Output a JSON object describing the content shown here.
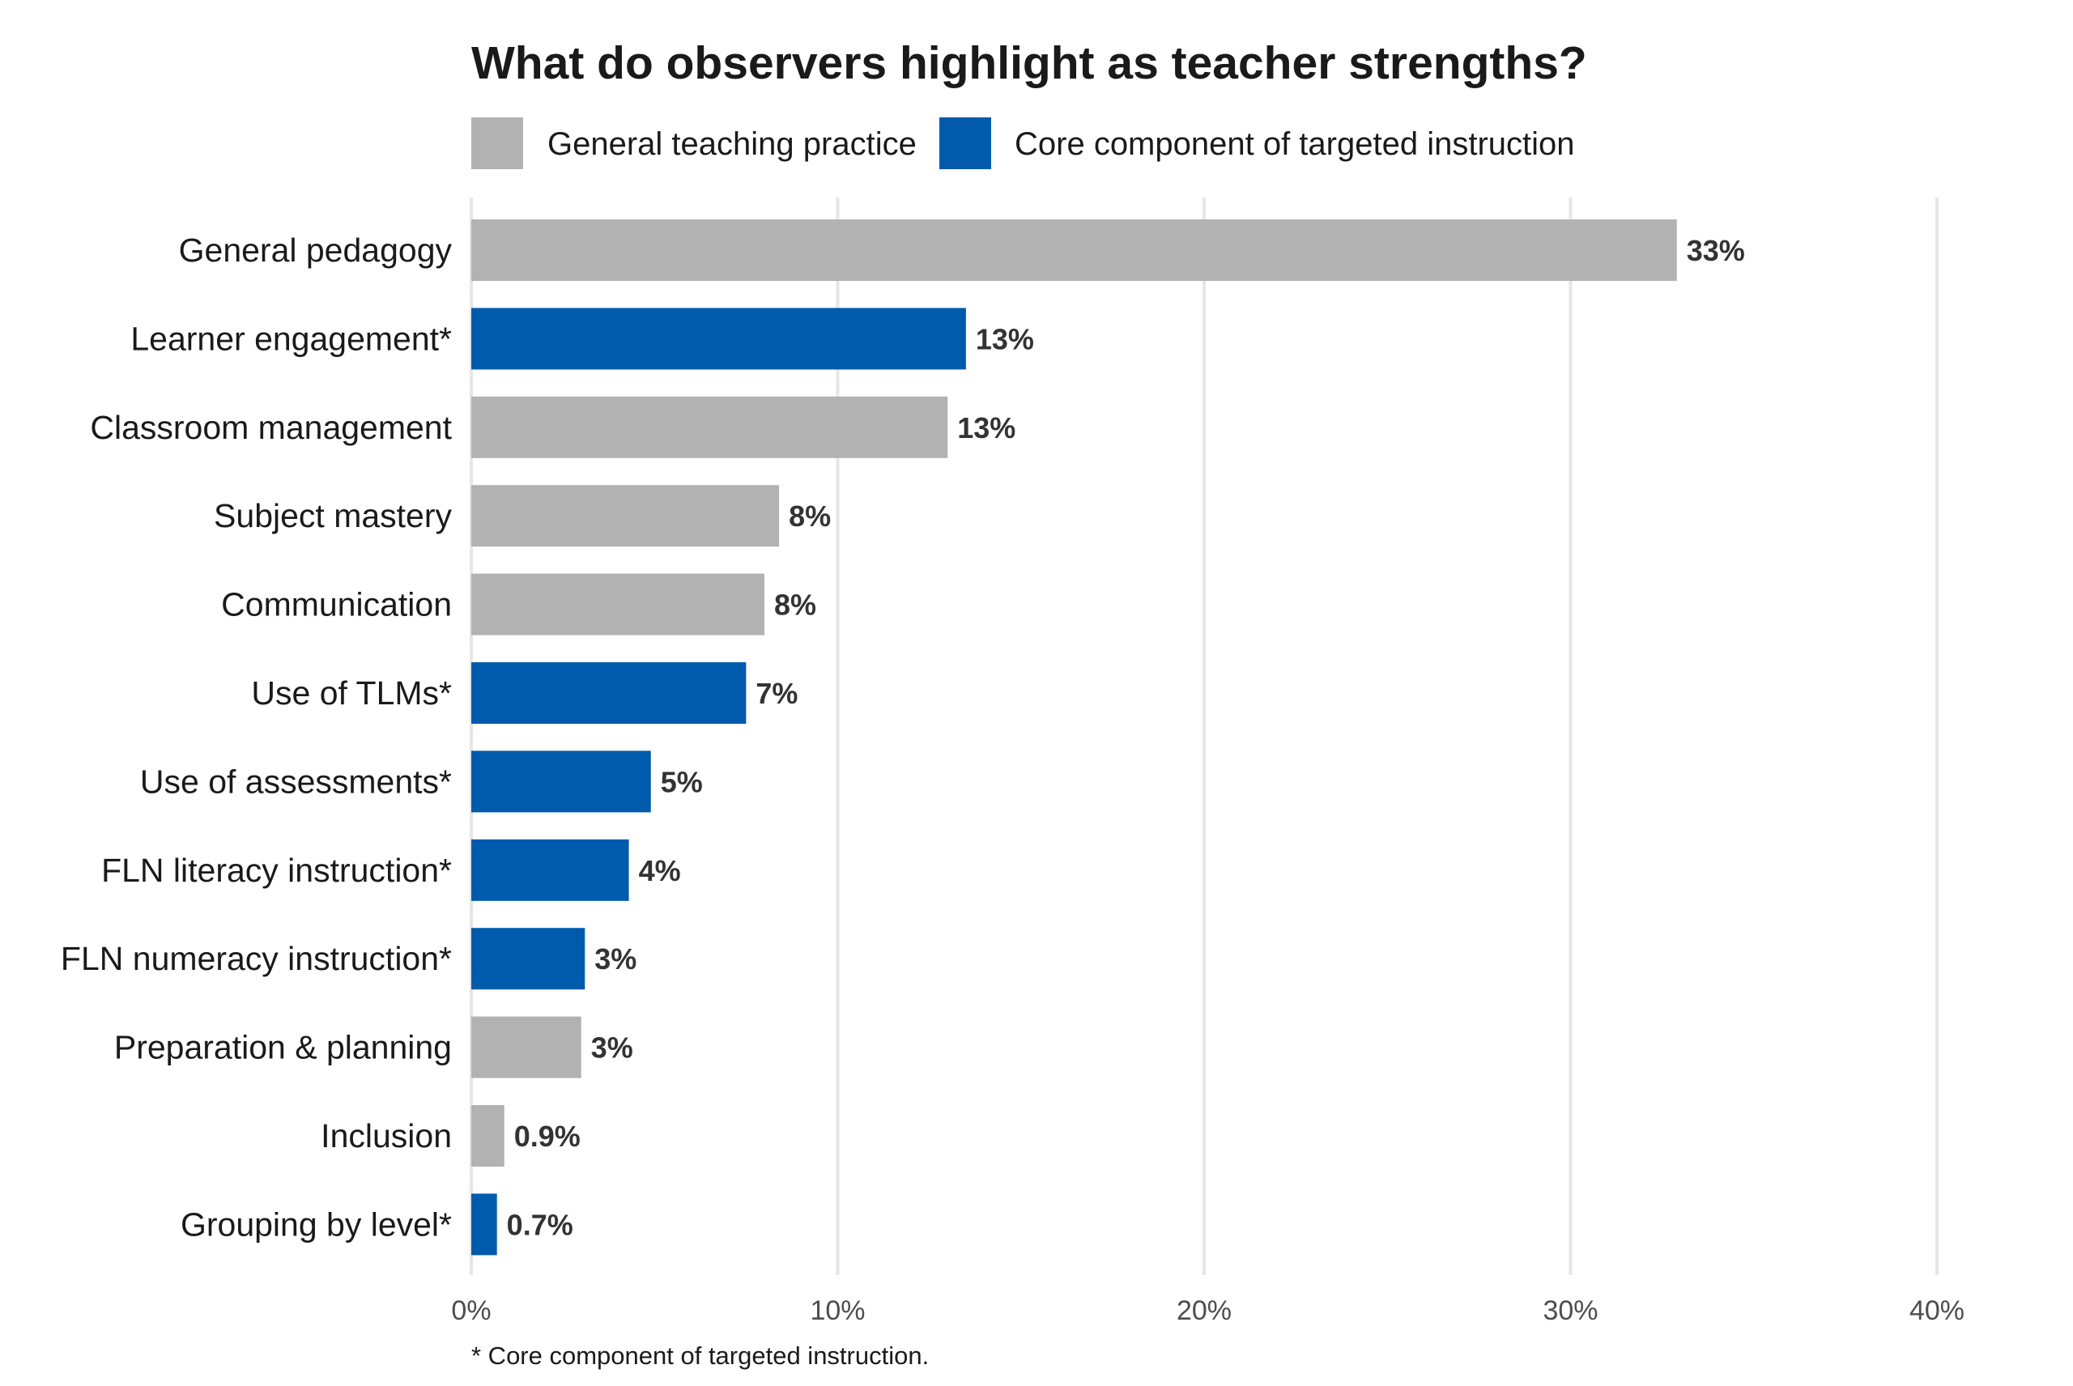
{
  "chart_data": {
    "type": "bar",
    "orientation": "horizontal",
    "title": "What do observers highlight as teacher strengths?",
    "xlabel": "",
    "ylabel": "",
    "xlim": [
      0,
      40
    ],
    "ticks": [
      0,
      10,
      20,
      30,
      40
    ],
    "tick_labels": [
      "0%",
      "10%",
      "20%",
      "30%",
      "40%"
    ],
    "grid": "vertical",
    "legend": {
      "placement": "top-left",
      "entries": [
        {
          "key": "general",
          "label": "General teaching practice",
          "color": "#b2b2b2"
        },
        {
          "key": "core",
          "label": "Core component of targeted instruction",
          "color": "#005bac"
        }
      ]
    },
    "categories": [
      "General pedagogy",
      "Learner engagement*",
      "Classroom management",
      "Subject mastery",
      "Communication",
      "Use of TLMs*",
      "Use of assessments*",
      "FLN literacy instruction*",
      "FLN numeracy instruction*",
      "Preparation & planning",
      "Inclusion",
      "Grouping by level*"
    ],
    "values": [
      32.9,
      13.5,
      13.0,
      8.4,
      8.0,
      7.5,
      4.9,
      4.3,
      3.1,
      3.0,
      0.9,
      0.7
    ],
    "value_labels": [
      "33%",
      "13%",
      "13%",
      "8%",
      "8%",
      "7%",
      "5%",
      "4%",
      "3%",
      "3%",
      "0.9%",
      "0.7%"
    ],
    "groups": [
      "general",
      "core",
      "general",
      "general",
      "general",
      "core",
      "core",
      "core",
      "core",
      "general",
      "general",
      "core"
    ],
    "footnote": "* Core component of targeted instruction."
  },
  "colors": {
    "general": "#b2b2b2",
    "core": "#005bac",
    "grid": "#e6e6e6",
    "text": "#1a1a1a",
    "tick_text": "#4d4d4d",
    "value_text": "#333333"
  }
}
